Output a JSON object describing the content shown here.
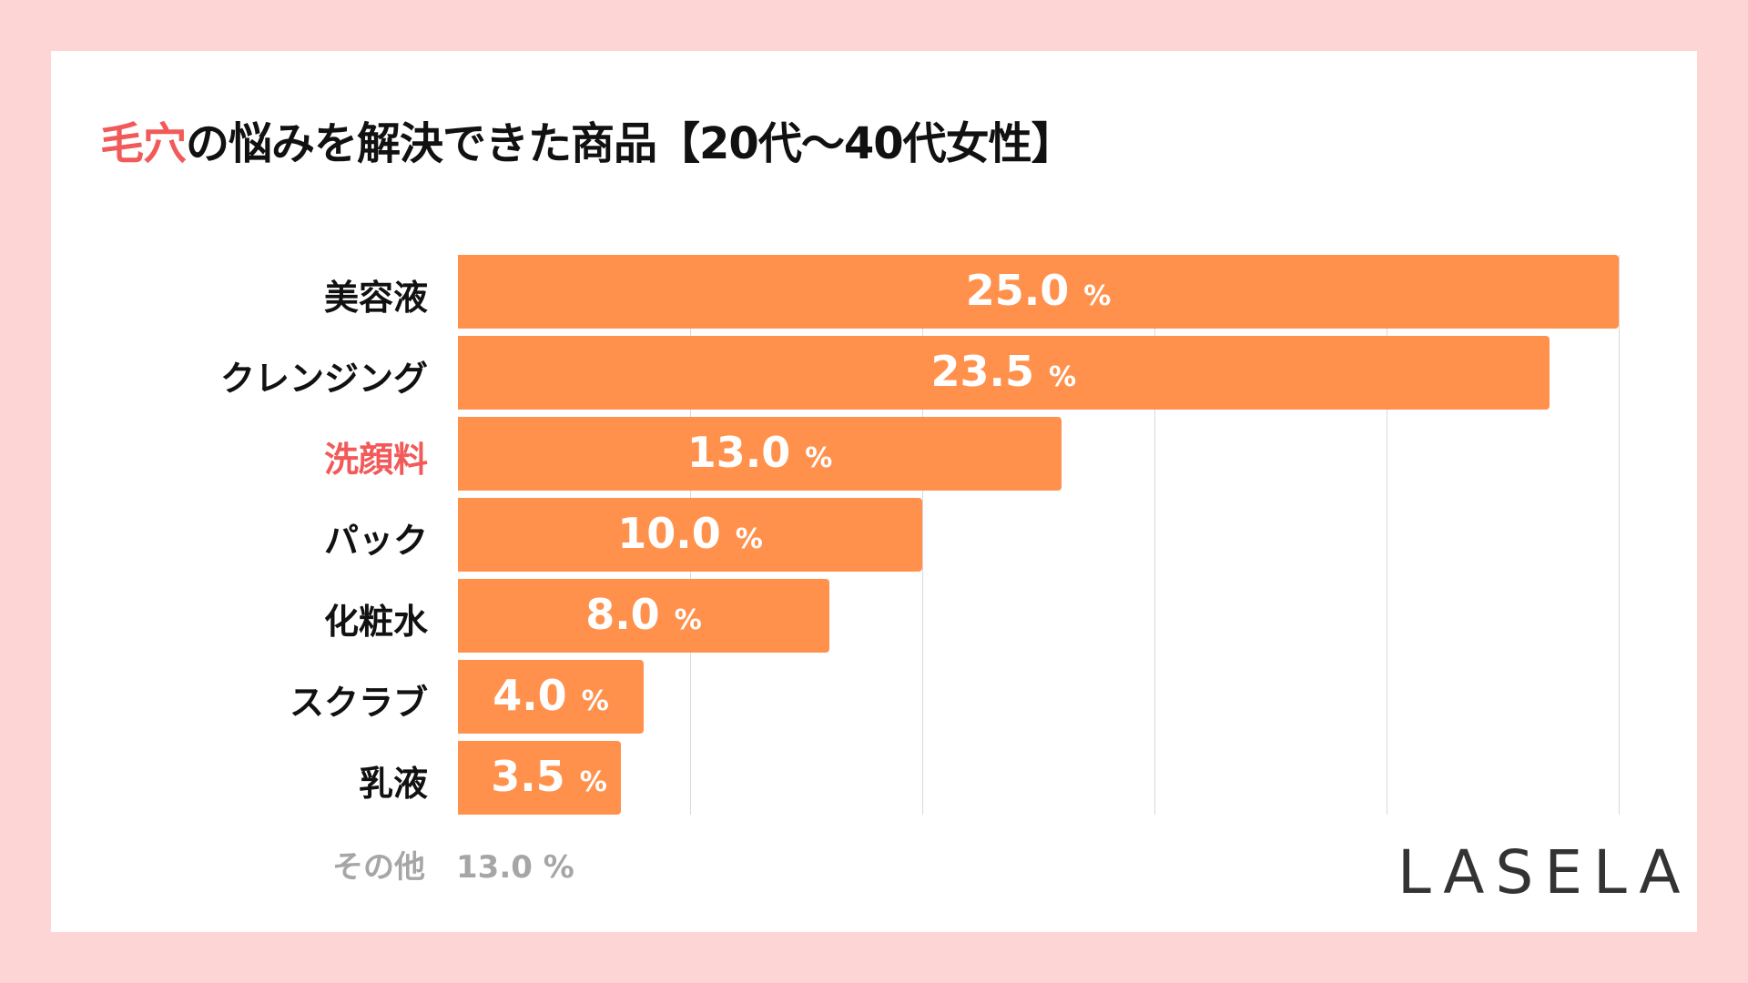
{
  "title": {
    "accent": "毛穴",
    "rest": "の悩みを解決できた商品【20代〜40代女性】"
  },
  "chart_data": {
    "type": "bar",
    "orientation": "horizontal",
    "categories": [
      "美容液",
      "クレンジング",
      "洗顔料",
      "パック",
      "化粧水",
      "スクラブ",
      "乳液"
    ],
    "values": [
      25.0,
      23.5,
      13.0,
      10.0,
      8.0,
      4.0,
      3.5
    ],
    "value_labels": [
      "25.0",
      "23.5",
      "13.0",
      "10.0",
      "8.0",
      "4.0",
      "3.5"
    ],
    "unit": "%",
    "highlight_category": "洗顔料",
    "xlim": [
      0,
      25
    ],
    "grid": true,
    "grid_step": 5,
    "bar_color": "#ff914d",
    "highlight_color": "#f25a5a"
  },
  "other": {
    "label": "その他",
    "value": "13.0 %"
  },
  "logo": "LASELA"
}
